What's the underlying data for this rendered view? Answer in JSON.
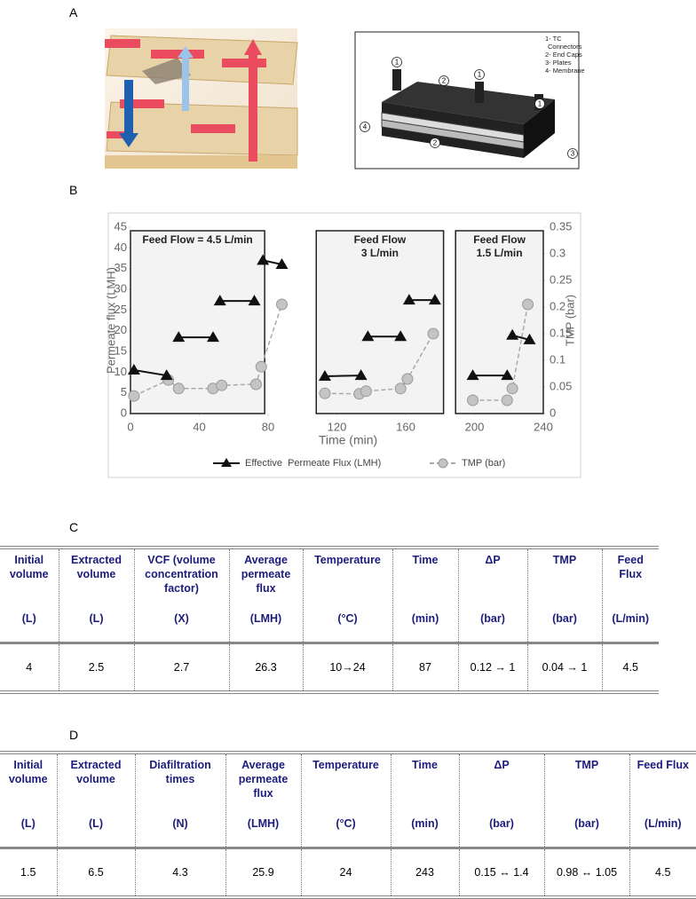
{
  "panel_labels": [
    "A",
    "B",
    "C",
    "D"
  ],
  "figure_a": {
    "legend": [
      "1- TC",
      "Connectors",
      "2- End Caps",
      "3- Plates",
      "4- Membrane"
    ],
    "callouts": [
      "1",
      "1",
      "1",
      "2",
      "2",
      "4",
      "3"
    ]
  },
  "chart_data": {
    "type": "line",
    "x_label": "Time (min)",
    "y_label": "Permeate flux (LMH)",
    "y2_label": "TMP (bar)",
    "xlim": [
      0,
      240
    ],
    "xticks": [
      0,
      40,
      80,
      120,
      160,
      200,
      240
    ],
    "ylim": [
      0,
      45
    ],
    "yticks": [
      0,
      5,
      10,
      15,
      20,
      25,
      30,
      35,
      40,
      45
    ],
    "y2lim": [
      0,
      0.35
    ],
    "y2ticks": [
      0,
      0.05,
      0.1,
      0.15,
      0.2,
      0.25,
      0.3,
      0.35
    ],
    "regions": [
      {
        "label": [
          "Feed Flow = 4.5 L/min"
        ],
        "x": [
          0,
          78
        ]
      },
      {
        "label": [
          "Feed Flow",
          "3 L/min"
        ],
        "x": [
          108,
          182
        ]
      },
      {
        "label": [
          "Feed Flow",
          "1.5 L/min"
        ],
        "x": [
          189,
          240
        ]
      }
    ],
    "series": [
      {
        "name": "Effective  Permeate Flux (LMH)",
        "color": "#111111",
        "marker": "triangle",
        "x": [
          2,
          21,
          null,
          28,
          48,
          null,
          52,
          72,
          null,
          77,
          88,
          null,
          113,
          134,
          null,
          138,
          157,
          null,
          162,
          177,
          null,
          199,
          219,
          null,
          222,
          232
        ],
        "values": [
          10.5,
          9.2,
          null,
          18.4,
          18.4,
          null,
          27.2,
          27.2,
          null,
          37,
          36,
          null,
          9,
          9.2,
          null,
          18.6,
          18.6,
          null,
          27.4,
          27.4,
          null,
          9.2,
          9.2,
          null,
          18.9,
          17.8
        ]
      },
      {
        "name": "TMP (bar)",
        "color": "#aaaaaa",
        "marker": "circle",
        "dashed": true,
        "axis": "y2",
        "x": [
          2,
          22,
          28,
          48,
          53,
          73,
          76,
          88,
          null,
          113,
          133,
          137,
          157,
          161,
          176,
          null,
          199,
          219,
          222,
          231
        ],
        "values": [
          0.033,
          0.063,
          0.047,
          0.047,
          0.053,
          0.055,
          0.088,
          0.205,
          null,
          0.038,
          0.037,
          0.042,
          0.047,
          0.065,
          0.15,
          null,
          0.025,
          0.025,
          0.047,
          0.205
        ]
      }
    ]
  },
  "table_c": {
    "header": [
      [
        "Initial volume",
        "(L)"
      ],
      [
        "Extracted volume",
        "(L)"
      ],
      [
        "VCF (volume concentration factor)",
        "(X)"
      ],
      [
        "Average permeate flux",
        "(LMH)"
      ],
      [
        "Temperature",
        "(°C)"
      ],
      [
        "Time",
        "(min)"
      ],
      [
        "ΔP",
        "(bar)"
      ],
      [
        "TMP",
        "(bar)"
      ],
      [
        "Feed Flux",
        "(L/min)"
      ]
    ],
    "rows": [
      [
        "4",
        "2.5",
        "2.7",
        "26.3",
        "10→24",
        "87",
        "0.12 → 1",
        "0.04 → 1",
        "4.5"
      ]
    ]
  },
  "table_d": {
    "header": [
      [
        "Initial volume",
        "(L)"
      ],
      [
        "Extracted volume",
        "(L)"
      ],
      [
        "Diafiltration times",
        "(N)"
      ],
      [
        "Average permeate flux",
        "(LMH)"
      ],
      [
        "Temperature",
        "(°C)"
      ],
      [
        "Time",
        "(min)"
      ],
      [
        "ΔP",
        "(bar)"
      ],
      [
        "TMP",
        "(bar)"
      ],
      [
        "Feed Flux",
        "(L/min)"
      ]
    ],
    "rows": [
      [
        "1.5",
        "6.5",
        "4.3",
        "25.9",
        "24",
        "243",
        "0.15 ↔ 1.4",
        "0.98 ↔ 1.05",
        "4.5"
      ]
    ]
  }
}
